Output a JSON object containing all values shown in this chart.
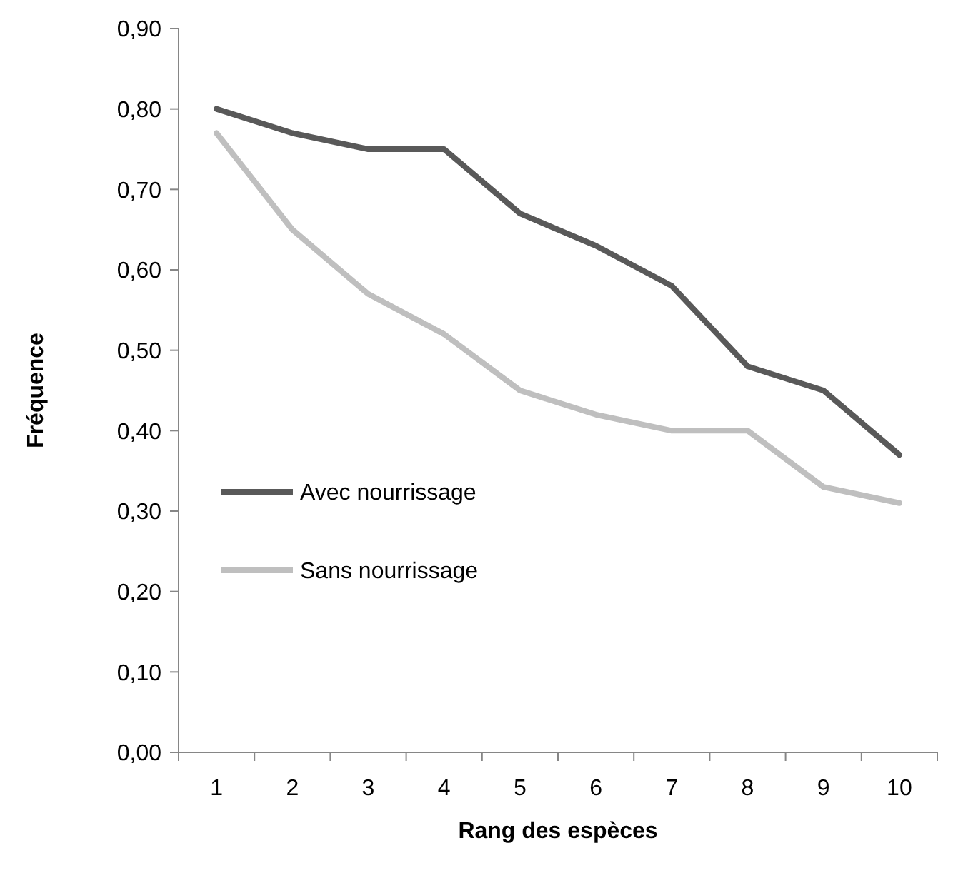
{
  "chart_data": {
    "type": "line",
    "xlabel": "Rang des espèces",
    "ylabel": "Fréquence",
    "categories": [
      "1",
      "2",
      "3",
      "4",
      "5",
      "6",
      "7",
      "8",
      "9",
      "10"
    ],
    "series": [
      {
        "name": "Avec nourrissage",
        "color": "#595959",
        "values": [
          0.8,
          0.77,
          0.75,
          0.75,
          0.67,
          0.63,
          0.58,
          0.48,
          0.45,
          0.37
        ]
      },
      {
        "name": "Sans nourrissage",
        "color": "#bfbfbf",
        "values": [
          0.77,
          0.65,
          0.57,
          0.52,
          0.45,
          0.42,
          0.4,
          0.4,
          0.33,
          0.31
        ]
      }
    ],
    "ylim": [
      0,
      0.9
    ],
    "yticks": [
      {
        "value": 0,
        "label": "0,00"
      },
      {
        "value": 0.1,
        "label": "0,10"
      },
      {
        "value": 0.2,
        "label": "0,20"
      },
      {
        "value": 0.3,
        "label": "0,30"
      },
      {
        "value": 0.4,
        "label": "0,40"
      },
      {
        "value": 0.5,
        "label": "0,50"
      },
      {
        "value": 0.6,
        "label": "0,60"
      },
      {
        "value": 0.7,
        "label": "0,70"
      },
      {
        "value": 0.8,
        "label": "0,80"
      },
      {
        "value": 0.9,
        "label": "0,90"
      }
    ],
    "grid": false,
    "legend": "left",
    "marker": "none",
    "line_style": "solid"
  }
}
